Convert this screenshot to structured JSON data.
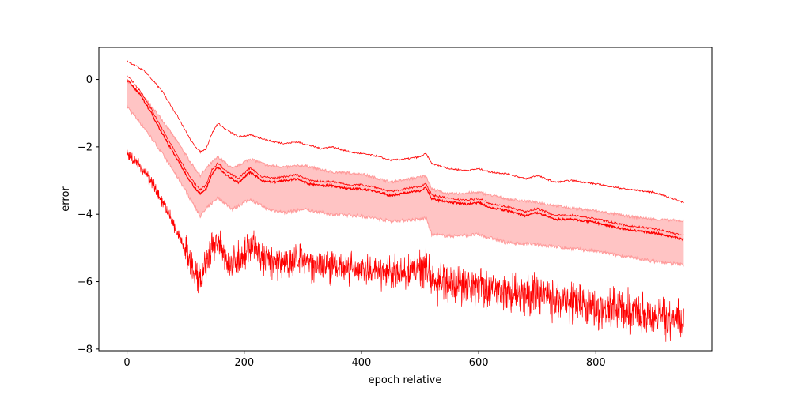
{
  "chart_data": {
    "type": "line",
    "title": "",
    "xlabel": "epoch relative",
    "ylabel": "error",
    "xlim": [
      -48,
      998
    ],
    "ylim": [
      -8.05,
      0.95
    ],
    "xticks": [
      0,
      200,
      400,
      600,
      800
    ],
    "yticks": [
      0,
      -2,
      -4,
      -6,
      -8
    ],
    "grid": false,
    "legend": "none",
    "colors": {
      "line": "#ff0000",
      "band": "#ffc4c4",
      "band_edge": "#ff9a9a"
    },
    "series": [
      {
        "role": "upper",
        "x": [
          0,
          30,
          60,
          90,
          110,
          125,
          135,
          145,
          155,
          170,
          190,
          210,
          230,
          250,
          270,
          290,
          310,
          330,
          350,
          380,
          400,
          420,
          450,
          480,
          500,
          510,
          520,
          550,
          580,
          600,
          620,
          650,
          680,
          700,
          730,
          760,
          800,
          850,
          900,
          950
        ],
        "y": [
          0.55,
          0.25,
          -0.35,
          -1.2,
          -1.85,
          -2.15,
          -2.05,
          -1.6,
          -1.3,
          -1.5,
          -1.7,
          -1.65,
          -1.75,
          -1.85,
          -1.9,
          -1.85,
          -1.95,
          -2.05,
          -2.0,
          -2.15,
          -2.2,
          -2.25,
          -2.4,
          -2.35,
          -2.3,
          -2.2,
          -2.5,
          -2.65,
          -2.7,
          -2.65,
          -2.75,
          -2.8,
          -2.95,
          -2.85,
          -3.05,
          -3.0,
          -3.1,
          -3.25,
          -3.35,
          -3.65
        ]
      },
      {
        "role": "mean",
        "x": [
          0,
          20,
          40,
          60,
          80,
          100,
          115,
          125,
          135,
          145,
          155,
          170,
          190,
          210,
          230,
          250,
          270,
          290,
          310,
          330,
          350,
          380,
          400,
          420,
          450,
          480,
          500,
          510,
          520,
          550,
          580,
          600,
          620,
          650,
          680,
          700,
          730,
          760,
          800,
          850,
          900,
          950
        ],
        "y": [
          0.0,
          -0.4,
          -0.95,
          -1.6,
          -2.2,
          -2.8,
          -3.2,
          -3.4,
          -3.25,
          -2.8,
          -2.6,
          -2.85,
          -3.05,
          -2.75,
          -3.0,
          -3.05,
          -3.0,
          -2.95,
          -3.1,
          -3.15,
          -3.15,
          -3.25,
          -3.25,
          -3.3,
          -3.45,
          -3.35,
          -3.3,
          -3.2,
          -3.55,
          -3.65,
          -3.7,
          -3.65,
          -3.8,
          -3.9,
          -4.05,
          -3.95,
          -4.15,
          -4.15,
          -4.25,
          -4.45,
          -4.55,
          -4.75
        ]
      },
      {
        "role": "lower",
        "x": [
          0,
          20,
          40,
          60,
          80,
          100,
          110,
          120,
          130,
          145,
          155,
          165,
          180,
          200,
          215,
          230,
          250,
          280,
          300,
          330,
          350,
          380,
          400,
          420,
          450,
          480,
          500,
          510,
          520,
          550,
          580,
          600,
          620,
          650,
          680,
          700,
          730,
          760,
          800,
          850,
          900,
          950
        ],
        "y": [
          -2.2,
          -2.5,
          -3.0,
          -3.6,
          -4.3,
          -5.1,
          -5.6,
          -6.0,
          -5.8,
          -5.05,
          -4.75,
          -5.3,
          -5.45,
          -5.15,
          -4.9,
          -5.3,
          -5.45,
          -5.35,
          -5.4,
          -5.45,
          -5.55,
          -5.6,
          -5.65,
          -5.7,
          -5.75,
          -5.7,
          -5.6,
          -5.5,
          -5.95,
          -6.05,
          -6.05,
          -6.1,
          -6.25,
          -6.3,
          -6.5,
          -6.35,
          -6.55,
          -6.55,
          -6.75,
          -6.85,
          -7.0,
          -7.15
        ]
      }
    ],
    "band": {
      "x": [
        0,
        30,
        60,
        90,
        110,
        125,
        140,
        155,
        180,
        210,
        240,
        270,
        300,
        350,
        400,
        450,
        500,
        510,
        520,
        550,
        600,
        650,
        700,
        750,
        800,
        850,
        900,
        950
      ],
      "upper": [
        -0.05,
        -0.55,
        -1.2,
        -1.95,
        -2.5,
        -2.85,
        -2.55,
        -2.3,
        -2.65,
        -2.35,
        -2.55,
        -2.6,
        -2.55,
        -2.75,
        -2.8,
        -3.05,
        -2.9,
        -2.85,
        -3.25,
        -3.4,
        -3.35,
        -3.55,
        -3.65,
        -3.8,
        -3.9,
        -4.05,
        -4.15,
        -4.2
      ],
      "lower": [
        -0.8,
        -1.45,
        -2.2,
        -3.0,
        -3.6,
        -4.05,
        -3.75,
        -3.5,
        -3.85,
        -3.55,
        -3.85,
        -3.95,
        -3.85,
        -4.0,
        -4.05,
        -4.2,
        -4.15,
        -4.1,
        -4.6,
        -4.65,
        -4.6,
        -4.85,
        -4.9,
        -5.0,
        -5.1,
        -5.25,
        -5.4,
        -5.5
      ]
    }
  }
}
